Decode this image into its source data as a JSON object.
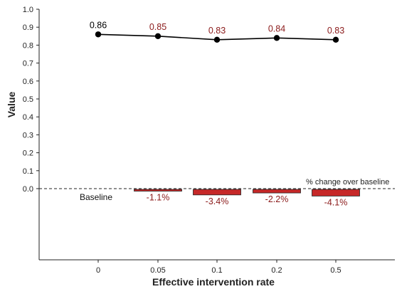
{
  "chart_data": {
    "type": "line",
    "xlabel": "Effective intervention rate",
    "ylabel": "Value",
    "ylim": [
      0.0,
      1.0
    ],
    "yticks": [
      "0.0",
      "0.1",
      "0.2",
      "0.3",
      "0.4",
      "0.5",
      "0.6",
      "0.7",
      "0.8",
      "0.9",
      "1.0"
    ],
    "categories": [
      "0",
      "0.05",
      "0.1",
      "0.2",
      "0.5"
    ],
    "series": [
      {
        "values": [
          0.86,
          0.85,
          0.83,
          0.84,
          0.83
        ],
        "labels": [
          "0.86",
          "0.85",
          "0.83",
          "0.84",
          "0.83"
        ],
        "label_colors": [
          "#000000",
          "#8b1a1a",
          "#8b1a1a",
          "#8b1a1a",
          "#8b1a1a"
        ],
        "color": "#000000"
      }
    ],
    "change": {
      "type": "bar",
      "label": "% change over baseline",
      "baseline_label": "Baseline",
      "values_pct": [
        0.0,
        -1.1,
        -3.4,
        -2.2,
        -4.1
      ],
      "labels": [
        "",
        "-1.1%",
        "-3.4%",
        "-2.2%",
        "-4.1%"
      ],
      "bar_color": "#c62828",
      "label_color": "#8b1a1a"
    },
    "grid": false
  }
}
